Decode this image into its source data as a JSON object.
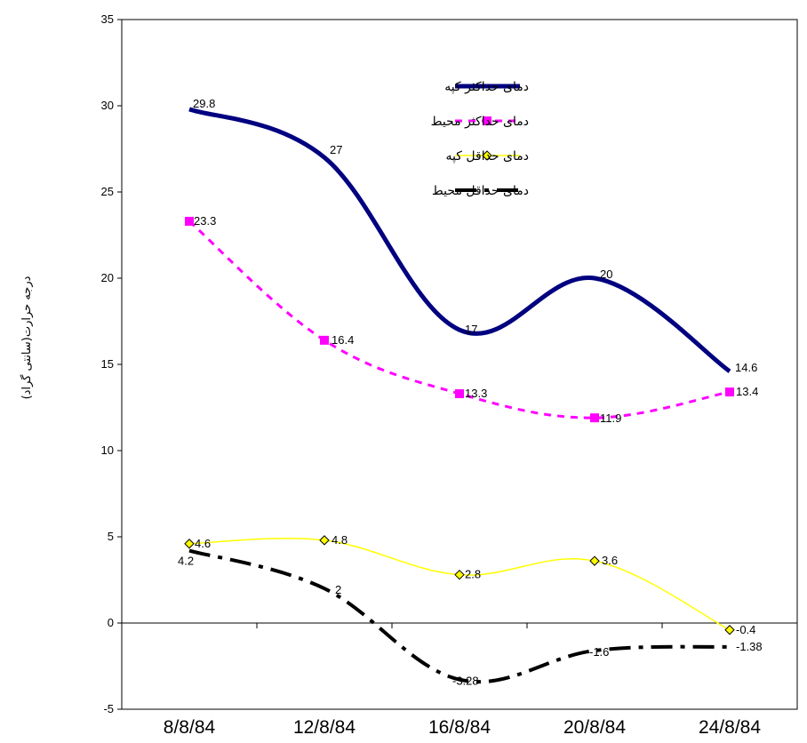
{
  "chart_data": {
    "type": "line",
    "title": "",
    "xlabel": "",
    "ylabel": "درجه حرارت(سانتی گراد)",
    "ylim": [
      -5,
      35
    ],
    "yticks": [
      -5,
      0,
      5,
      10,
      15,
      20,
      25,
      30,
      35
    ],
    "categories": [
      "8/8/84",
      "12/8/84",
      "16/8/84",
      "20/8/84",
      "24/8/84"
    ],
    "grid": false,
    "legend_position": "top-right",
    "series": [
      {
        "name": "دمای حداکثر کپه",
        "values": [
          29.8,
          27,
          17,
          20,
          14.6
        ],
        "labels": [
          "29.8",
          "27",
          "17",
          "20",
          "14.6"
        ],
        "color": "#000080",
        "style": "thick-solid",
        "marker": "none"
      },
      {
        "name": "دمای حداکثر محیط",
        "values": [
          23.3,
          16.4,
          13.3,
          11.9,
          13.4
        ],
        "labels": [
          "23.3",
          "16.4",
          "13.3",
          "11.9",
          "13.4"
        ],
        "color": "#FF00FF",
        "style": "dashed",
        "marker": "square"
      },
      {
        "name": "دمای حداقل کپه",
        "values": [
          4.6,
          4.8,
          2.8,
          3.6,
          -0.4
        ],
        "labels": [
          "4.6",
          "4.8",
          "2.8",
          "3.6",
          "-0.4"
        ],
        "color": "#FFFF00",
        "style": "thin-solid",
        "marker": "diamond"
      },
      {
        "name": "دمای حداقل محیط",
        "values": [
          4.2,
          2,
          -3.28,
          -1.6,
          -1.38
        ],
        "labels": [
          "4.2",
          "2",
          "-3.28",
          "-1.6",
          "-1.38"
        ],
        "color": "#000000",
        "style": "dash-dot",
        "marker": "none"
      }
    ]
  }
}
